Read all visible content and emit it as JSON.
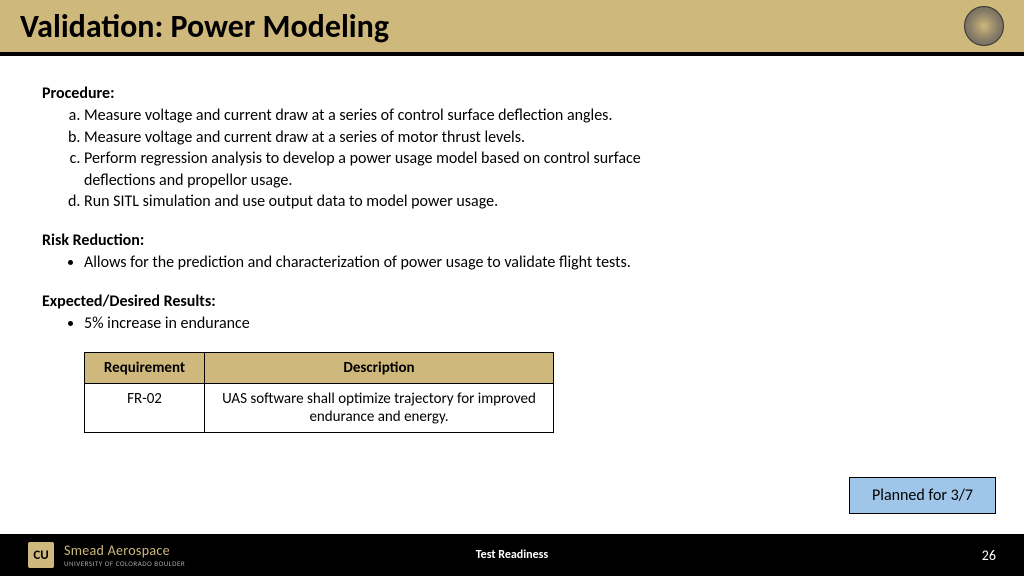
{
  "header": {
    "title": "Validation: Power Modeling"
  },
  "sections": {
    "procedure": {
      "heading": "Procedure:",
      "items": [
        "Measure voltage and current draw at a series of control surface deflection angles.",
        "Measure voltage and current draw at a series of motor thrust levels.",
        "Perform regression analysis to develop a power usage model based on control surface deflections and propellor usage.",
        "Run SITL simulation and use output data to model power usage."
      ]
    },
    "risk": {
      "heading": "Risk Reduction:",
      "items": [
        "Allows for the prediction and characterization of power usage to validate flight tests."
      ]
    },
    "results": {
      "heading": "Expected/Desired Results:",
      "items": [
        "5% increase in endurance"
      ]
    }
  },
  "table": {
    "columns": [
      "Requirement",
      "Description"
    ],
    "rows": [
      [
        "FR-02",
        "UAS software shall optimize trajectory for improved endurance and energy."
      ]
    ],
    "header_bg": "#cfb87c",
    "border_color": "#000000"
  },
  "planned_box": {
    "text": "Planned for 3/7",
    "bg": "#9fc5e8"
  },
  "footer": {
    "org_main": "Smead Aerospace",
    "org_sub": "UNIVERSITY OF COLORADO BOULDER",
    "center": "Test Readiness",
    "page": "26",
    "cu": "CU"
  },
  "colors": {
    "gold": "#cfb87c",
    "black": "#000000",
    "white": "#ffffff"
  }
}
